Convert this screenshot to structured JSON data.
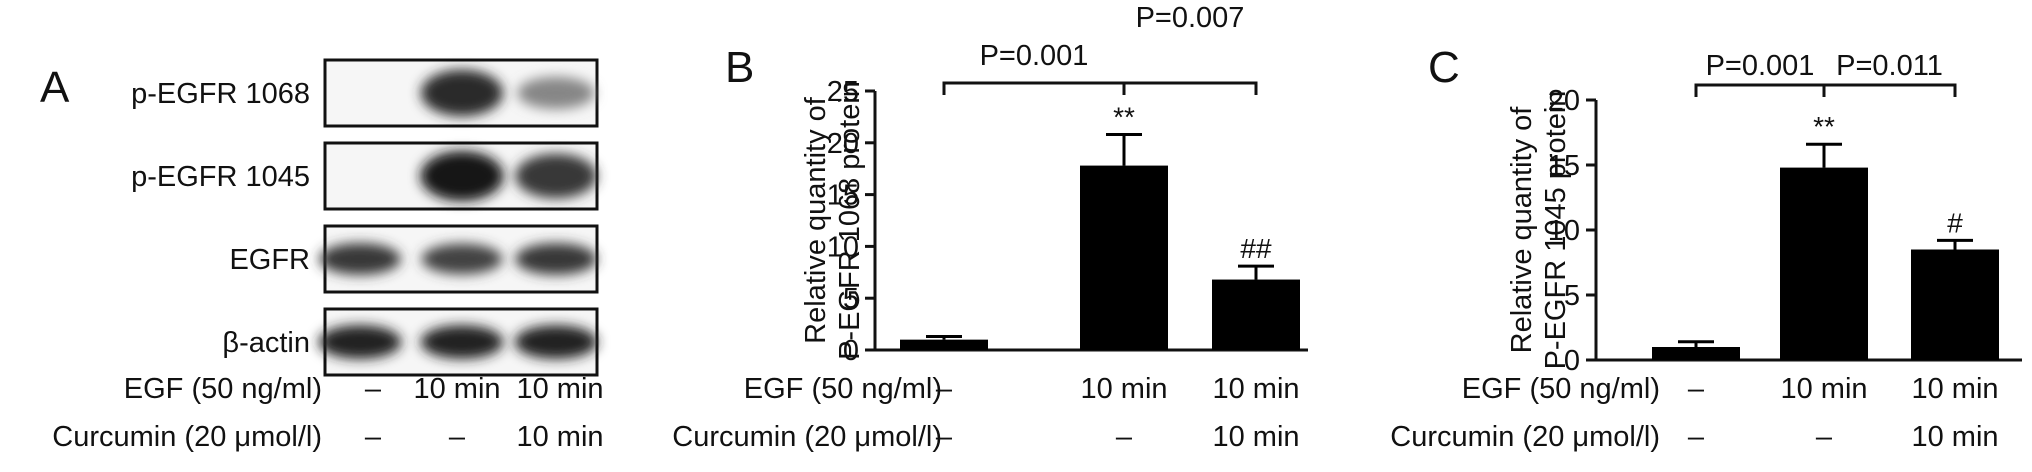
{
  "panels": {
    "A": {
      "letter": "A"
    },
    "B": {
      "letter": "B"
    },
    "C": {
      "letter": "C"
    }
  },
  "western_blot": {
    "rows": [
      {
        "label": "p-EGFR 1068",
        "band_intensity": [
          0.0,
          0.85,
          0.45
        ]
      },
      {
        "label": "p-EGFR 1045",
        "band_intensity": [
          0.0,
          0.95,
          0.8
        ]
      },
      {
        "label": "EGFR",
        "band_intensity": [
          0.8,
          0.75,
          0.8
        ]
      },
      {
        "label": "β-actin",
        "band_intensity": [
          0.9,
          0.9,
          0.9
        ]
      }
    ],
    "conditions": [
      {
        "label": "EGF (50 ng/ml)",
        "values": [
          "–",
          "10 min",
          "10 min"
        ]
      },
      {
        "label": "Curcumin (20 μmol/l)",
        "values": [
          "–",
          "–",
          "10 min"
        ]
      }
    ]
  },
  "chart_data": [
    {
      "type": "bar",
      "panel": "B",
      "categories": [
        "1",
        "2",
        "3"
      ],
      "values": [
        1.0,
        17.8,
        6.8
      ],
      "errors": [
        0.3,
        3.0,
        1.3
      ],
      "ylabel_line1": "Relative quantity of",
      "ylabel_line2": "P-EGFR 1068 protein",
      "ylim": [
        0,
        25
      ],
      "yticks": [
        "0",
        "5",
        "10",
        "15",
        "20",
        "25"
      ],
      "bar_labels": [
        "",
        "**",
        "##"
      ],
      "comparisons": [
        {
          "from": 0,
          "to": 1,
          "label": "P=0.001"
        },
        {
          "from": 1,
          "to": 2,
          "label": "P=0.007"
        }
      ],
      "conditions": [
        {
          "label": "EGF (50 ng/ml)",
          "values": [
            "–",
            "10 min",
            "10 min"
          ]
        },
        {
          "label": "Curcumin (20 μmol/l)",
          "values": [
            "–",
            "–",
            "10 min"
          ]
        }
      ]
    },
    {
      "type": "bar",
      "panel": "C",
      "categories": [
        "1",
        "2",
        "3"
      ],
      "values": [
        1.0,
        14.8,
        8.5
      ],
      "errors": [
        0.4,
        1.8,
        0.7
      ],
      "ylabel_line1": "Relative quantity of",
      "ylabel_line2": "P-EGFR 1045 protein",
      "ylim": [
        0,
        20
      ],
      "yticks": [
        "0",
        "5",
        "10",
        "15",
        "20"
      ],
      "bar_labels": [
        "",
        "**",
        "#"
      ],
      "comparisons": [
        {
          "from": 0,
          "to": 1,
          "label": "P=0.001"
        },
        {
          "from": 1,
          "to": 2,
          "label": "P=0.011"
        }
      ],
      "conditions": [
        {
          "label": "EGF (50 ng/ml)",
          "values": [
            "–",
            "10 min",
            "10 min"
          ]
        },
        {
          "label": "Curcumin (20 μmol/l)",
          "values": [
            "–",
            "–",
            "10 min"
          ]
        }
      ]
    }
  ]
}
